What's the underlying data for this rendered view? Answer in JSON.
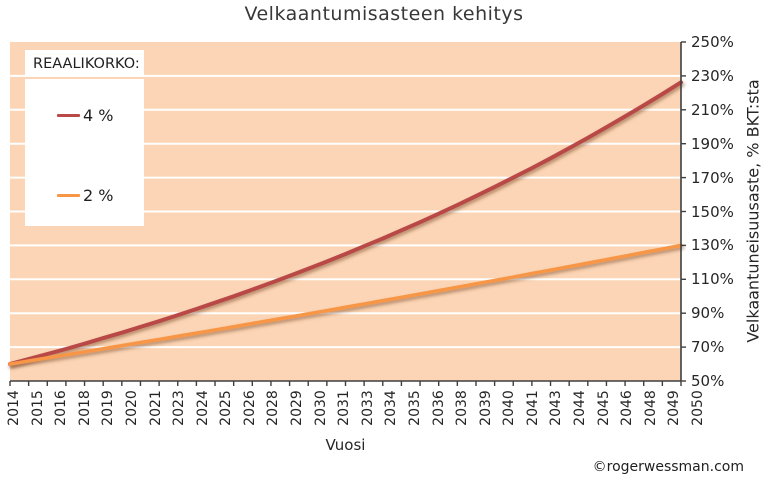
{
  "attribution": "©rogerwessman.com",
  "chart_data": {
    "type": "line",
    "title": "Velkaantumisasteen kehitys",
    "xlabel": "Vuosi",
    "ylabel": "Velkaantuneisuusaste, % BKT:sta",
    "legend_title": "REAALIKORKO:",
    "legend_position": "top-left inside plot",
    "grid": "horizontal white gridlines",
    "plot_bg": "#FBD5B5",
    "gridline_color": "#FFFFFF",
    "axis_color": "#3F3F3F",
    "ylim": [
      50,
      250
    ],
    "ytick_step": 20,
    "ytick_labels": [
      "250%",
      "230%",
      "210%",
      "190%",
      "170%",
      "150%",
      "130%",
      "110%",
      "90%",
      "70%",
      "50%"
    ],
    "x": [
      2014,
      2015,
      2016,
      2017,
      2018,
      2019,
      2020,
      2021,
      2022,
      2023,
      2024,
      2025,
      2026,
      2027,
      2028,
      2029,
      2030,
      2031,
      2032,
      2033,
      2034,
      2035,
      2036,
      2037,
      2038,
      2039,
      2040,
      2041,
      2042,
      2043,
      2044,
      2045,
      2046,
      2047,
      2048,
      2049,
      2050
    ],
    "xtick_labels": [
      "2014",
      "2015",
      "2016",
      "2018",
      "2019",
      "2020",
      "2021",
      "2023",
      "2024",
      "2025",
      "2026",
      "2028",
      "2029",
      "2030",
      "2031",
      "2033",
      "2034",
      "2035",
      "2036",
      "2038",
      "2039",
      "2040",
      "2041",
      "2043",
      "2044",
      "2045",
      "2046",
      "2048",
      "2049",
      "2050"
    ],
    "series": [
      {
        "name": "4 %",
        "color": "#B94A47",
        "values": [
          60.0,
          62.9,
          65.9,
          68.9,
          72.0,
          75.3,
          78.5,
          81.9,
          85.3,
          88.9,
          92.5,
          96.2,
          100.0,
          103.9,
          107.9,
          112.0,
          116.2,
          120.5,
          124.9,
          129.5,
          134.1,
          138.9,
          143.7,
          148.7,
          153.8,
          159.1,
          164.5,
          170.0,
          175.6,
          181.4,
          187.4,
          193.4,
          199.7,
          206.1,
          212.6,
          219.3,
          226.2
        ]
      },
      {
        "name": "2 %",
        "color": "#F79646",
        "values": [
          60.0,
          61.8,
          63.6,
          65.4,
          67.2,
          69.0,
          70.8,
          72.7,
          74.5,
          76.4,
          78.2,
          80.1,
          82.0,
          83.9,
          85.8,
          87.7,
          89.6,
          91.5,
          93.5,
          95.4,
          97.4,
          99.3,
          101.3,
          103.3,
          105.3,
          107.3,
          109.3,
          111.3,
          113.4,
          115.4,
          117.5,
          119.5,
          121.6,
          123.7,
          125.8,
          127.9,
          130.0
        ]
      }
    ]
  }
}
